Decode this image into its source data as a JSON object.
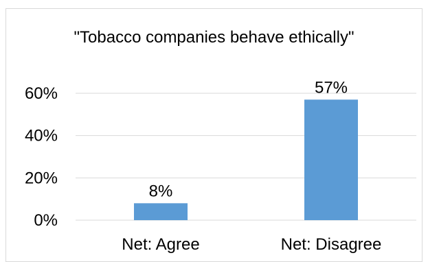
{
  "chart_data": {
    "type": "bar",
    "title": "\"Tobacco companies behave ethically\"",
    "categories": [
      "Net: Agree",
      "Net: Disagree"
    ],
    "values": [
      8,
      57
    ],
    "value_labels": [
      "8%",
      "57%"
    ],
    "ylim": [
      0,
      60
    ],
    "yticks": [
      0,
      20,
      40,
      60
    ],
    "ytick_labels": [
      "0%",
      "20%",
      "40%",
      "60%"
    ],
    "xlabel": "",
    "ylabel": "",
    "grid": true,
    "bar_color": "#5b9bd5",
    "gridline_color": "#d9d9d9"
  }
}
